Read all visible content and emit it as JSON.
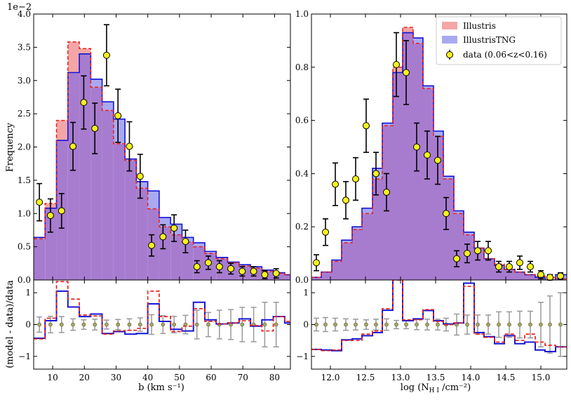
{
  "colors": {
    "illustris_fill": "#f4a6a6",
    "tng_fill": "#a9a9f2",
    "overlap_fill": "#a77ccf",
    "illustris_line": "#e8201a",
    "tng_line": "#1515d6",
    "data_marker": "#f7f21e",
    "resid_data": "#999999",
    "resid_marker": "#a8a868"
  },
  "legend": {
    "illustris": "Illustris",
    "tng": "IllustrisTNG",
    "data": "data (0.06<z<0.16)"
  },
  "chart_data": [
    {
      "id": "b",
      "type": "bar",
      "ylabel": "Frequency",
      "scale_label": "1e−2",
      "xlim": [
        4,
        85
      ],
      "ylim": [
        0,
        4.0
      ],
      "xticks": [
        10,
        20,
        30,
        40,
        50,
        60,
        70,
        80
      ],
      "yticks": [
        0,
        0.5,
        1.0,
        1.5,
        2.0,
        2.5,
        3.0,
        3.5,
        4.0
      ],
      "ytick_labels": [
        "0.0",
        "0.5",
        "1.0",
        "1.5",
        "2.0",
        "2.5",
        "3.0",
        "3.5",
        "4.0"
      ],
      "bin_edges": [
        4,
        7.6,
        11.2,
        14.8,
        18.4,
        22,
        25.6,
        29.2,
        32.8,
        36.4,
        40,
        43.6,
        47.2,
        50.8,
        54.4,
        58,
        61.6,
        65.2,
        68.8,
        72.4,
        76,
        79.6,
        83.2,
        85
      ],
      "illustris": [
        0.62,
        1.15,
        2.4,
        3.58,
        3.48,
        2.9,
        2.55,
        2.05,
        1.8,
        1.38,
        1.07,
        0.8,
        0.68,
        0.57,
        0.5,
        0.4,
        0.32,
        0.26,
        0.21,
        0.18,
        0.13,
        0.1,
        0.08
      ],
      "tng": [
        0.64,
        1.08,
        2.1,
        3.12,
        3.4,
        3.02,
        2.68,
        2.42,
        1.82,
        1.48,
        1.34,
        0.94,
        0.84,
        0.64,
        0.56,
        0.43,
        0.34,
        0.27,
        0.23,
        0.2,
        0.15,
        0.11,
        0.08
      ],
      "data": {
        "x": [
          5.8,
          9.3,
          12.8,
          16.4,
          19.8,
          23.3,
          27.0,
          30.6,
          34.2,
          37.6,
          41.2,
          44.8,
          48.3,
          51.9,
          55.5,
          59.1,
          62.6,
          66.2,
          69.8,
          73.4,
          76.9,
          80.5
        ],
        "y": [
          1.17,
          0.97,
          1.04,
          2.01,
          2.67,
          2.28,
          3.38,
          2.47,
          2.01,
          1.56,
          0.52,
          0.65,
          0.78,
          0.58,
          0.2,
          0.26,
          0.2,
          0.17,
          0.13,
          0.13,
          0.08,
          0.1
        ],
        "err": [
          0.28,
          0.25,
          0.26,
          0.36,
          0.4,
          0.38,
          0.46,
          0.4,
          0.37,
          0.33,
          0.16,
          0.18,
          0.2,
          0.17,
          0.09,
          0.1,
          0.09,
          0.08,
          0.07,
          0.07,
          0.06,
          0.07
        ]
      },
      "resid": {
        "xlabel": "b (km s⁻¹)",
        "ylabel": "(model - data)/data",
        "ylim": [
          -1.4,
          1.4
        ],
        "yticks": [
          -1,
          0,
          1
        ],
        "ytick_labels": [
          "−1",
          "0",
          "1"
        ],
        "illustris": [
          -0.45,
          0.2,
          1.35,
          0.8,
          0.3,
          0.27,
          -0.3,
          -0.2,
          -0.18,
          -0.12,
          1.05,
          0.25,
          -0.22,
          -0.05,
          0.5,
          0.1,
          0.02,
          0.05,
          0.12,
          -0.03,
          -0.2,
          0.25,
          0.1
        ],
        "tng": [
          -0.43,
          0.12,
          1.05,
          0.55,
          0.25,
          0.33,
          -0.28,
          -0.22,
          -0.3,
          -0.28,
          0.65,
          0.1,
          -0.15,
          -0.2,
          0.7,
          0.15,
          0.02,
          0.05,
          0.18,
          -0.05,
          0.15,
          0.25,
          0.05
        ],
        "data_x": [
          5.8,
          9.3,
          12.8,
          16.4,
          19.8,
          23.3,
          27.0,
          30.6,
          34.2,
          37.6,
          41.2,
          44.8,
          48.3,
          51.9,
          55.5,
          59.1,
          62.6,
          66.2,
          69.8,
          73.4,
          76.9,
          80.5
        ],
        "data_err": [
          0.24,
          0.26,
          0.25,
          0.18,
          0.15,
          0.17,
          0.14,
          0.16,
          0.18,
          0.21,
          0.31,
          0.28,
          0.26,
          0.29,
          0.45,
          0.38,
          0.45,
          0.47,
          0.54,
          0.54,
          0.7,
          0.7
        ]
      }
    },
    {
      "id": "nhi",
      "type": "bar",
      "ylabel": "",
      "xlim": [
        11.73,
        15.37
      ],
      "ylim": [
        0,
        1.0
      ],
      "xticks": [
        12.0,
        12.5,
        13.0,
        13.5,
        14.0,
        14.5,
        15.0
      ],
      "xtick_labels": [
        "12.0",
        "12.5",
        "13.0",
        "13.5",
        "14.0",
        "14.5",
        "15.0"
      ],
      "yticks": [
        0,
        0.2,
        0.4,
        0.6,
        0.8,
        1.0
      ],
      "ytick_labels": [
        "0.0",
        "0.2",
        "0.4",
        "0.6",
        "0.8",
        "1.0"
      ],
      "bin_edges": [
        11.73,
        11.87,
        12.02,
        12.16,
        12.31,
        12.45,
        12.6,
        12.74,
        12.89,
        13.03,
        13.18,
        13.32,
        13.47,
        13.61,
        13.76,
        13.9,
        14.05,
        14.19,
        14.34,
        14.48,
        14.63,
        14.77,
        14.92,
        15.06,
        15.21,
        15.37
      ],
      "illustris": [
        0.01,
        0.03,
        0.07,
        0.14,
        0.19,
        0.25,
        0.38,
        0.58,
        0.8,
        0.95,
        0.89,
        0.72,
        0.54,
        0.38,
        0.25,
        0.17,
        0.12,
        0.08,
        0.06,
        0.04,
        0.03,
        0.02,
        0.015,
        0.01,
        0.005
      ],
      "tng": [
        0.01,
        0.03,
        0.075,
        0.15,
        0.2,
        0.27,
        0.42,
        0.59,
        0.78,
        0.93,
        0.91,
        0.73,
        0.56,
        0.39,
        0.26,
        0.18,
        0.12,
        0.08,
        0.055,
        0.04,
        0.03,
        0.02,
        0.01,
        0.0,
        0.02
      ],
      "data": {
        "x": [
          11.8,
          11.93,
          12.07,
          12.22,
          12.36,
          12.51,
          12.65,
          12.8,
          12.94,
          13.08,
          13.23,
          13.38,
          13.53,
          13.65,
          13.8,
          13.95,
          14.1,
          14.25,
          14.4,
          14.55,
          14.7,
          14.85,
          15.0,
          15.13,
          15.28
        ],
        "y": [
          0.065,
          0.18,
          0.36,
          0.3,
          0.38,
          0.58,
          0.4,
          0.33,
          0.81,
          0.78,
          0.5,
          0.47,
          0.45,
          0.25,
          0.08,
          0.1,
          0.11,
          0.11,
          0.05,
          0.05,
          0.065,
          0.05,
          0.02,
          0.01,
          0.015
        ],
        "err": [
          0.03,
          0.05,
          0.08,
          0.07,
          0.08,
          0.1,
          0.08,
          0.07,
          0.12,
          0.12,
          0.09,
          0.09,
          0.09,
          0.06,
          0.03,
          0.035,
          0.035,
          0.035,
          0.02,
          0.02,
          0.025,
          0.02,
          0.015,
          0.01,
          0.012
        ]
      },
      "resid": {
        "xlabel": "log (N",
        "xlabel_sub": "H I",
        "xlabel_tail": " /cm⁻²)",
        "ylabel": "",
        "ylim": [
          -1.4,
          1.4
        ],
        "yticks": [
          -1,
          0,
          1
        ],
        "ytick_labels": [
          "−1",
          "0",
          "1"
        ],
        "illustris": [
          -0.78,
          -0.82,
          -0.8,
          -0.5,
          -0.5,
          -0.3,
          -0.2,
          0.5,
          1.4,
          0.15,
          0.15,
          0.47,
          0.1,
          0.0,
          0.05,
          1.2,
          -0.3,
          -0.4,
          -0.55,
          -0.3,
          -0.5,
          -0.3,
          -0.55,
          -0.65,
          -0.7
        ],
        "tng": [
          -0.78,
          -0.8,
          -0.82,
          -0.48,
          -0.45,
          -0.35,
          -0.25,
          0.45,
          1.5,
          0.12,
          0.18,
          0.44,
          0.12,
          0.02,
          0.05,
          1.3,
          -0.25,
          -0.38,
          -0.6,
          -0.35,
          -0.6,
          -0.55,
          -0.8,
          -0.85,
          -0.7
        ],
        "data_x": [
          11.8,
          11.93,
          12.07,
          12.22,
          12.36,
          12.51,
          12.65,
          12.8,
          12.94,
          13.08,
          13.23,
          13.38,
          13.53,
          13.65,
          13.8,
          13.95,
          14.1,
          14.25,
          14.4,
          14.55,
          14.7,
          14.85,
          15.0,
          15.13,
          15.28
        ],
        "data_err": [
          0.2,
          0.22,
          0.2,
          0.18,
          0.17,
          0.15,
          0.17,
          0.18,
          0.13,
          0.13,
          0.16,
          0.17,
          0.17,
          0.2,
          0.33,
          0.3,
          0.3,
          0.3,
          0.4,
          0.4,
          0.42,
          0.42,
          0.7,
          0.9,
          1.0
        ]
      }
    }
  ]
}
